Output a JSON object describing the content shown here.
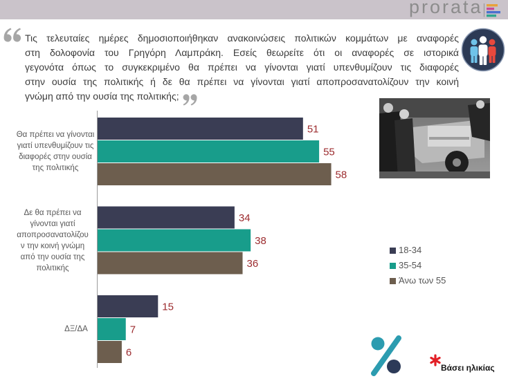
{
  "header": {
    "logo_text": "prorata",
    "logo_icon": "prorata-stripes-icon",
    "logo_colors": [
      "#e8a13a",
      "#c84a98",
      "#4a70cf",
      "#2ea68f"
    ],
    "band_color": "#cac3ca"
  },
  "question": {
    "open_quote_icon": "open-quote-icon",
    "close_quote_icon": "close-quote-icon",
    "lines": [
      "Τις τελευταίες ημέρες δημοσιοποιήθηκαν ανακοινώσεις πολιτικών κομμάτων με αναφορές",
      "στη δολοφονία του Γρηγόρη Λαμπράκη. Εσείς θεωρείτε ότι οι αναφορές σε ιστορικά",
      "γεγονότα όπως το συγκεκριμένο θα πρέπει να γίνονται γιατί υπενθυμίζουν τις διαφορές",
      "στην ουσία της πολιτικής ή δε θα πρέπει να γίνονται γιατί αποπροσανατολίζουν την κοινή",
      "γνώμη από την ουσία της πολιτικής;"
    ]
  },
  "decorations": {
    "people_icon": "people-group-icon",
    "photo_icon": "photograph-image",
    "percent_icon": "percent-icon"
  },
  "chart_data": {
    "type": "bar",
    "orientation": "horizontal",
    "categories": [
      "Θα πρέπει να γίνονται\nγιατί υπενθυμίζουν τις\nδιαφορές στην ουσία\nτης πολιτικής",
      "Δε θα πρέπει να\nγίνονται γιατί\nαποπροσανατολίζου\nν την κοινή γνώμη\nαπό την ουσία της\nπολιτικής",
      "ΔΞ/ΔΑ"
    ],
    "series": [
      {
        "name": "18-34",
        "values": [
          51,
          34,
          15
        ],
        "color": "#3a3d54"
      },
      {
        "name": "35-54",
        "values": [
          55,
          38,
          7
        ],
        "color": "#189d8b"
      },
      {
        "name": "Άνω των 55",
        "values": [
          58,
          36,
          6
        ],
        "color": "#6d5e4e"
      }
    ],
    "data_labels": true,
    "data_label_color": "#9c2b2e",
    "value_axis_visible": false,
    "grid": false,
    "legend_position": "right"
  },
  "footnote": {
    "marker_icon": "asterisk-icon",
    "marker_color": "#e21f26",
    "text": "Βάσει ηλικίας"
  }
}
